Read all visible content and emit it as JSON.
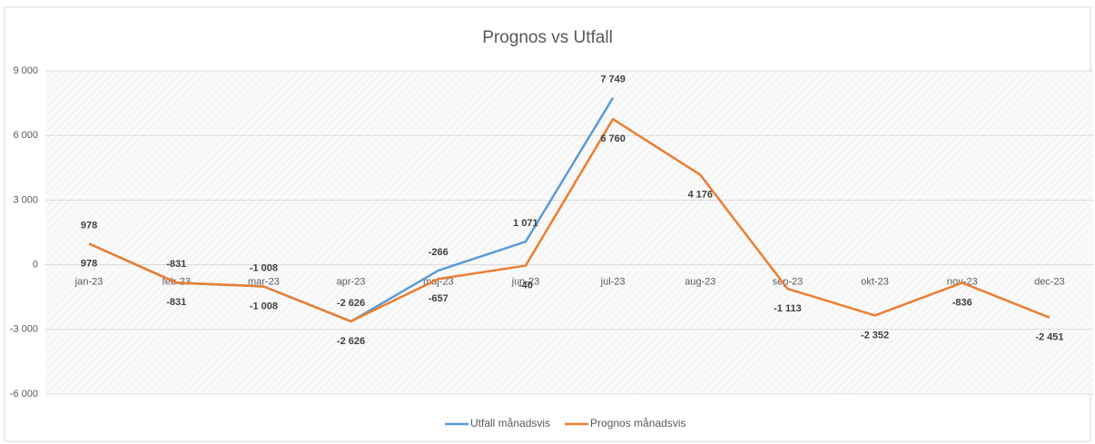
{
  "chart_data": {
    "type": "line",
    "title": "Prognos vs Utfall",
    "categories": [
      "jan-23",
      "feb-23",
      "mar-23",
      "apr-23",
      "maj-23",
      "jun-23",
      "jul-23",
      "aug-23",
      "sep-23",
      "okt-23",
      "nov-23",
      "dec-23"
    ],
    "series": [
      {
        "name": "Utfall månadsvis",
        "color": "#5b9bd5",
        "values": [
          978,
          -831,
          -1008,
          -2626,
          -266,
          1071,
          7749,
          null,
          null,
          null,
          null,
          null
        ],
        "value_labels": [
          "978",
          "-831",
          "-1 008",
          "-2 626",
          "-266",
          "1 071",
          "7 749",
          null,
          null,
          null,
          null,
          null
        ]
      },
      {
        "name": "Prognos månadsvis",
        "color": "#ed7d31",
        "values": [
          978,
          -831,
          -1008,
          -2626,
          -657,
          -40,
          6760,
          4176,
          -1113,
          -2352,
          -836,
          -2451
        ],
        "value_labels": [
          "978",
          "-831",
          "-1 008",
          "-2 626",
          "-657",
          "-40",
          "6 760",
          "4 176",
          "-1 113",
          "-2 352",
          "-836",
          "-2 451"
        ]
      }
    ],
    "ylim": [
      -6000,
      9000
    ],
    "yticks": [
      {
        "value": -6000,
        "label": "-6 000"
      },
      {
        "value": -3000,
        "label": "-3 000"
      },
      0,
      {
        "value": 3000,
        "label": "3 000"
      },
      {
        "value": 6000,
        "label": "6 000"
      },
      {
        "value": 9000,
        "label": "9 000"
      }
    ],
    "grid": true
  }
}
